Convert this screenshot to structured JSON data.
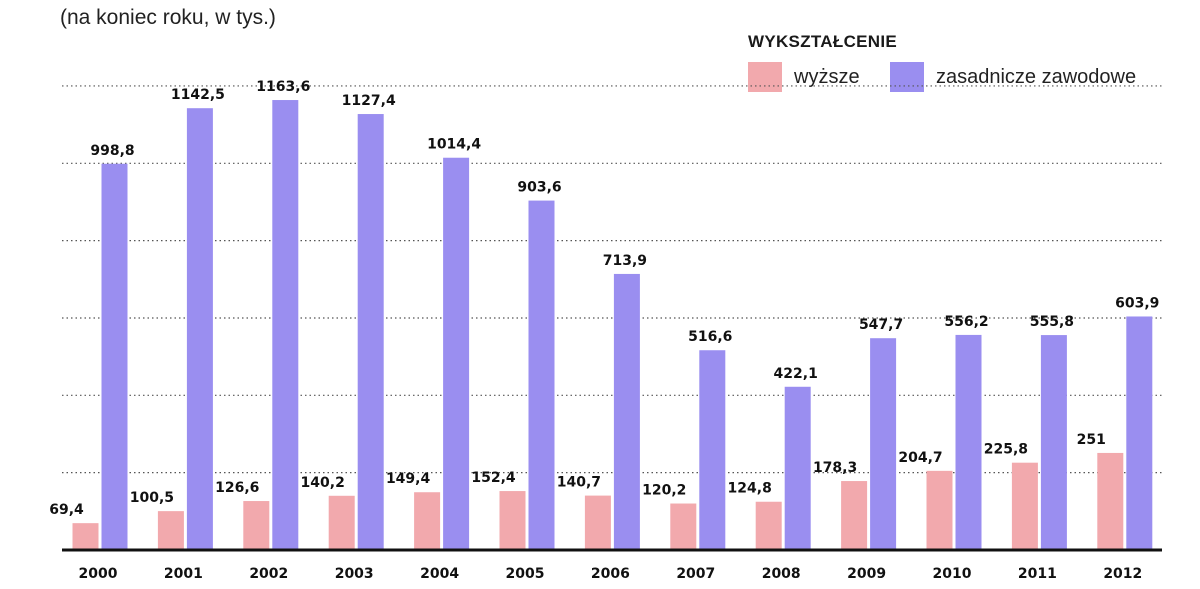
{
  "chart_data": {
    "type": "bar",
    "subtitle": "(na koniec roku, w tys.)",
    "legend_title": "WYKSZTAŁCENIE",
    "legend_position": "top-right",
    "grid": true,
    "categories": [
      "2000",
      "2001",
      "2002",
      "2003",
      "2004",
      "2005",
      "2006",
      "2007",
      "2008",
      "2009",
      "2010",
      "2011",
      "2012"
    ],
    "ylim": [
      0,
      1300
    ],
    "series": [
      {
        "name": "wyższe",
        "color": "#f2a9ad",
        "values": [
          69.4,
          100.5,
          126.6,
          140.2,
          149.4,
          152.4,
          140.7,
          120.2,
          124.8,
          178.3,
          204.7,
          225.8,
          251
        ],
        "labels": [
          "69,4",
          "100,5",
          "126,6",
          "140,2",
          "149,4",
          "152,4",
          "140,7",
          "120,2",
          "124,8",
          "178,3",
          "204,7",
          "225,8",
          "251"
        ]
      },
      {
        "name": "zasadnicze zawodowe",
        "color": "#9a8ef0",
        "values": [
          998.8,
          1142.5,
          1163.6,
          1127.4,
          1014.4,
          903.6,
          713.9,
          516.6,
          422.1,
          547.7,
          556.2,
          555.8,
          603.9
        ],
        "labels": [
          "998,8",
          "1142,5",
          "1163,6",
          "1127,4",
          "1014,4",
          "903,6",
          "713,9",
          "516,6",
          "422,1",
          "547,7",
          "556,2",
          "555,8",
          "603,9"
        ]
      }
    ]
  }
}
